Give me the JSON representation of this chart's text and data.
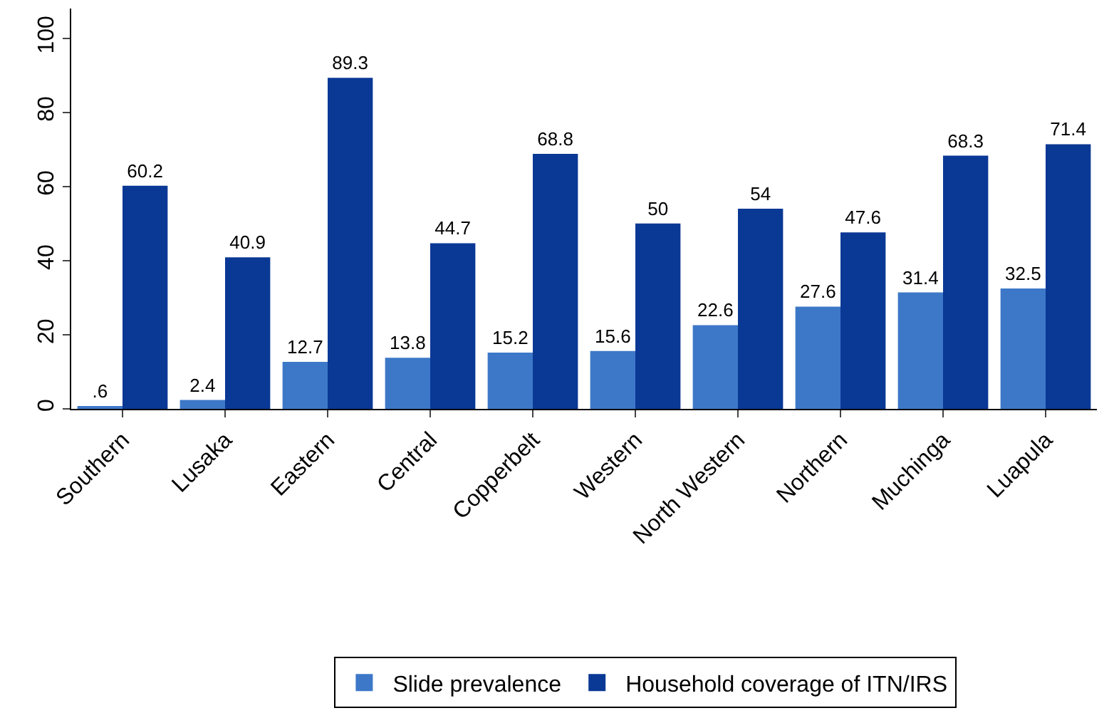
{
  "chart_data": {
    "type": "bar",
    "categories": [
      "Southern",
      "Lusaka",
      "Eastern",
      "Central",
      "Copperbelt",
      "Western",
      "North Western",
      "Northern",
      "Muchinga",
      "Luapula"
    ],
    "series": [
      {
        "name": "Slide prevalence",
        "color": "#3d78c8",
        "values": [
          0.6,
          2.4,
          12.7,
          13.8,
          15.2,
          15.6,
          22.6,
          27.6,
          31.4,
          32.5
        ],
        "value_labels": [
          ".6",
          "2.4",
          "12.7",
          "13.8",
          "15.2",
          "15.6",
          "22.6",
          "27.6",
          "31.4",
          "32.5"
        ]
      },
      {
        "name": "Household coverage of ITN/IRS",
        "color": "#0a3895",
        "values": [
          60.2,
          40.9,
          89.3,
          44.7,
          68.8,
          50,
          54,
          47.6,
          68.3,
          71.4
        ],
        "value_labels": [
          "60.2",
          "40.9",
          "89.3",
          "44.7",
          "68.8",
          "50",
          "54",
          "47.6",
          "68.3",
          "71.4"
        ]
      }
    ],
    "ylim": [
      0,
      108
    ],
    "yticks": [
      0,
      20,
      40,
      60,
      80,
      100
    ],
    "legend": "bottom"
  }
}
